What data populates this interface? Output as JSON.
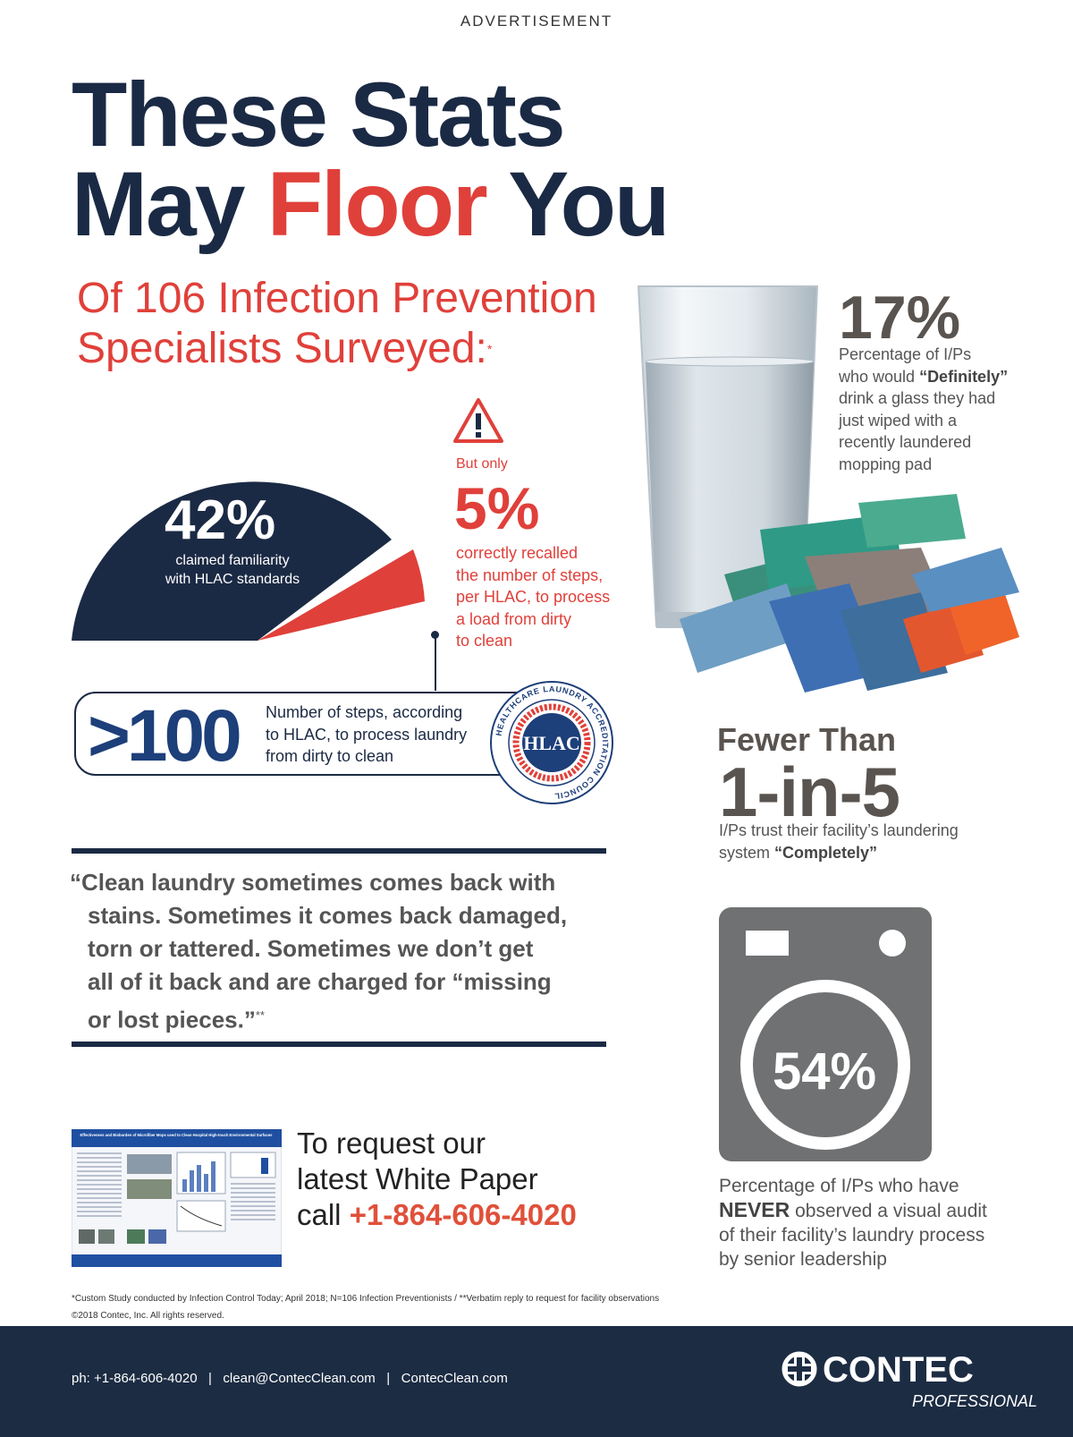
{
  "ad_label": "ADVERTISEMENT",
  "headline": {
    "line1": "These Stats",
    "line2_part1": "May ",
    "line2_part2": "Floor",
    "line2_part3": " You"
  },
  "survey": {
    "line1": "Of 106 Infection Prevention",
    "line2": "Specialists Surveyed:",
    "mark": "*"
  },
  "stat_familiarity": {
    "value": "42%",
    "desc_line1": "claimed familiarity",
    "desc_line2": "with HLAC standards"
  },
  "stat_recall": {
    "prefix": "But only",
    "value": "5%",
    "desc_lines": [
      "correctly recalled",
      "the number of steps,",
      "per HLAC, to process",
      "a load from dirty",
      "to clean"
    ]
  },
  "stat_steps": {
    "value": ">100",
    "desc_lines": [
      "Number of steps, according",
      "to HLAC, to process laundry",
      "from dirty to clean"
    ],
    "seal_center": "HLAC",
    "seal_ring_text": "HEALTHCARE LAUNDRY ACCREDITATION COUNCIL"
  },
  "quote": {
    "line1": "“Clean laundry sometimes comes back with",
    "line2": "stains. Sometimes it comes back damaged,",
    "line3": "torn or tattered. Sometimes we don’t get",
    "line4": "all of it back and are charged for “missing",
    "line5": "or lost pieces.”",
    "mark": "**"
  },
  "whitepaper": {
    "line1": "To request our",
    "line2": "latest White Paper",
    "line3_prefix": "call ",
    "phone": "+1-864-606-4020",
    "thumb_title": "Effectiveness and Bioburden of Microfiber Mops used to Clean Hospital High-touch Environmental Surfaces"
  },
  "footnote": {
    "line1": "*Custom Study conducted by Infection Control Today; April 2018; N=106 Infection Preventionists / **Verbatim reply to request for facility observations",
    "line2": "©2018 Contec, Inc. All rights reserved."
  },
  "stat_drink": {
    "value": "17%",
    "desc_line1": "Percentage of I/Ps",
    "desc_line2_prefix": "who would ",
    "desc_line2_bold": "“Definitely”",
    "desc_lines_rest": [
      "drink a glass they had",
      "just wiped with a",
      "recently laundered",
      "mopping pad"
    ]
  },
  "stat_trust": {
    "heading": "Fewer Than",
    "value": "1-in-5",
    "desc_line1": "I/Ps trust their facility’s laundering",
    "desc_line2_prefix": "system ",
    "desc_line2_bold": "“Completely”"
  },
  "stat_audit": {
    "value": "54%",
    "desc_line1": "Percentage of I/Ps who have",
    "desc_line2_bold": "NEVER",
    "desc_line2_rest": " observed a visual audit",
    "desc_line3": "of their facility’s laundry process",
    "desc_line4": "by senior leadership"
  },
  "footer": {
    "contact": "ph: +1-864-606-4020   |   clean@ContecClean.com   |   ContecClean.com",
    "logo_name": "CONTEC",
    "logo_sub": "PROFESSIONAL"
  },
  "colors": {
    "navy": "#1b2a44",
    "red": "#e0403a",
    "gray": "#5a5450",
    "footer": "#1c2c43"
  },
  "icons": [
    "warning-triangle-icon",
    "hlac-seal-icon",
    "washing-machine-icon",
    "contec-logo-icon"
  ]
}
